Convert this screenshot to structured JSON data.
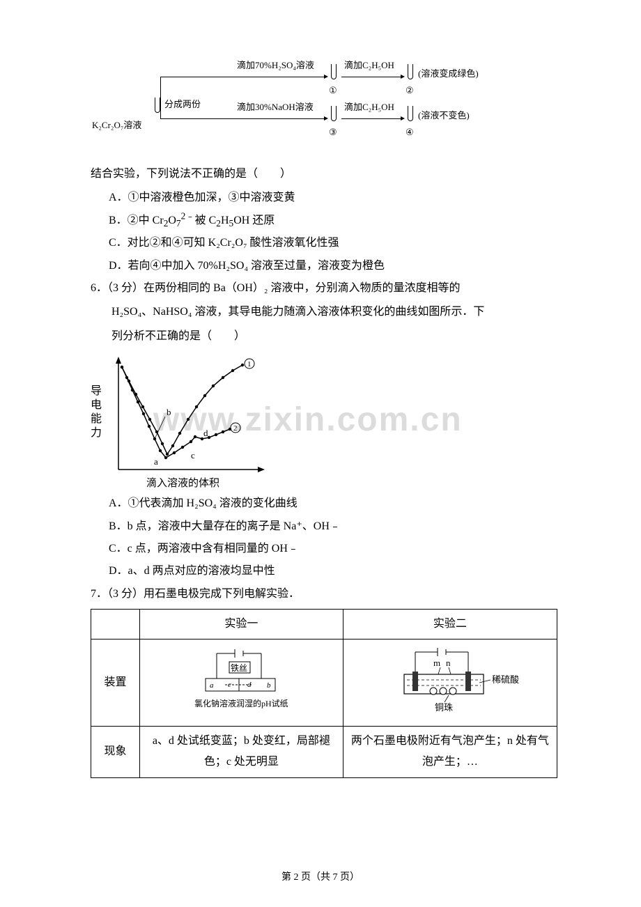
{
  "diagram1": {
    "start_label": "K₂Cr₂O₇溶液",
    "split_label": "分成两份",
    "top_step1": "滴加70%H₂SO₄溶液",
    "top_step2": "滴加C₂H₅OH",
    "top_result": "(溶液变成绿色)",
    "bot_step1": "滴加30%NaOH溶液",
    "bot_step2": "滴加C₂H₅OH",
    "bot_result": "(溶液不变色)",
    "circ1": "①",
    "circ2": "②",
    "circ3": "③",
    "circ4": "④",
    "line_color": "#000000"
  },
  "q5": {
    "stem": "结合实验，下列说法不正确的是（　　）",
    "A": "A．①中溶液橙色加深，③中溶液变黄",
    "B_pre": "B．②中 Cr",
    "B_mid": "O",
    "B_post": "被 C",
    "B_tail": "OH 还原",
    "B_sub1": "2",
    "B_sub2": "7",
    "B_sup": "2﹣",
    "B_sub3": "2",
    "B_sub4": "5",
    "C": "C．对比②和④可知 K₂Cr₂O₇ 酸性溶液氧化性强",
    "D": "D．若向④中加入 70%H₂SO₄ 溶液至过量，溶液变为橙色"
  },
  "q6": {
    "num": "6．（3 分）",
    "stem1": "在两份相同的 Ba（OH）₂ 溶液中，分别滴入物质的量浓度相等的",
    "stem2": "H₂SO₄、NaHSO₄ 溶液，其导电能力随滴入溶液体积变化的曲线如图所示．下",
    "stem3": "列分析不正确的是（　　）",
    "graph": {
      "ylabel": "导\n电\n能\n力",
      "xlabel": "滴入溶液的体积",
      "label_a": "a",
      "label_b": "b",
      "label_c": "c",
      "label_d": "d",
      "circ1": "①",
      "circ2": "②",
      "axis_color": "#000000",
      "line_width": 1.5,
      "marker_radius": 2.2,
      "marker_color": "#000000",
      "curve1_points": [
        [
          45,
          25
        ],
        [
          55,
          45
        ],
        [
          65,
          64
        ],
        [
          75,
          82
        ],
        [
          85,
          100
        ],
        [
          95,
          118
        ],
        [
          103,
          135
        ],
        [
          110,
          150
        ],
        [
          118,
          138
        ],
        [
          128,
          120
        ],
        [
          140,
          100
        ],
        [
          152,
          82
        ],
        [
          164,
          66
        ],
        [
          176,
          52
        ],
        [
          190,
          40
        ],
        [
          204,
          30
        ],
        [
          218,
          22
        ]
      ],
      "curve2_points": [
        [
          45,
          25
        ],
        [
          52,
          40
        ],
        [
          60,
          58
        ],
        [
          68,
          75
        ],
        [
          76,
          92
        ],
        [
          84,
          110
        ],
        [
          92,
          128
        ],
        [
          100,
          145
        ],
        [
          108,
          155
        ],
        [
          120,
          148
        ],
        [
          132,
          140
        ],
        [
          144,
          132
        ],
        [
          150,
          125
        ],
        [
          160,
          128
        ],
        [
          170,
          126
        ],
        [
          180,
          122
        ],
        [
          190,
          118
        ],
        [
          200,
          114
        ]
      ],
      "a_pos": [
        103,
        165
      ],
      "b_pos": [
        105,
        100
      ],
      "c_pos": [
        148,
        140
      ],
      "d_pos": [
        160,
        130
      ]
    },
    "A": "A．①代表滴加 H₂SO₄ 溶液的变化曲线",
    "B": "B．b 点，溶液中大量存在的离子是 Na⁺、OH﹣",
    "C": "C．c 点，两溶液中含有相同量的 OH﹣",
    "D": "D．a、d 两点对应的溶液均显中性"
  },
  "q7": {
    "num": "7．（3 分）",
    "stem": "用石墨电极完成下列电解实验．",
    "table": {
      "headers": [
        "",
        "实验一",
        "实验二"
      ],
      "row_device": "装置",
      "row_phenom": "现象",
      "apparatus1": {
        "label_top": "铁丝",
        "label_a": "a",
        "label_b": "b",
        "label_c": "c",
        "label_d": "d",
        "bottom": "氯化钠溶液润湿的pH试纸"
      },
      "apparatus2": {
        "label_m": "m",
        "label_n": "n",
        "label_acid": "稀硫酸",
        "label_cu": "铜珠"
      },
      "phenom1": "a、d 处试纸变蓝；b 处变红，局部褪色；c 处无明显",
      "phenom2": "两个石墨电极附近有气泡产生；n 处有气泡产生；…"
    }
  },
  "footer": {
    "page": "第 2 页（共 7 页）"
  },
  "watermark_text": "www.zixin.com.cn"
}
